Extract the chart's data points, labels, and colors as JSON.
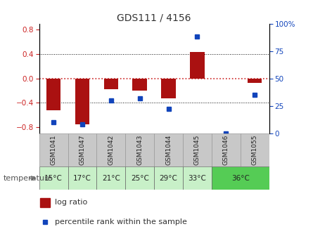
{
  "title": "GDS111 / 4156",
  "samples": [
    "GSM1041",
    "GSM1047",
    "GSM1042",
    "GSM1043",
    "GSM1044",
    "GSM1045",
    "GSM1046",
    "GSM1055"
  ],
  "log_ratios": [
    -0.52,
    -0.75,
    -0.18,
    -0.2,
    -0.33,
    0.43,
    0.0,
    -0.07
  ],
  "percentile_ranks": [
    10,
    8,
    30,
    32,
    22,
    88,
    0,
    35
  ],
  "temp_groups": [
    {
      "label": "15°C",
      "cols": [
        0
      ],
      "color": "#c8f0c8"
    },
    {
      "label": "17°C",
      "cols": [
        1
      ],
      "color": "#c8f0c8"
    },
    {
      "label": "21°C",
      "cols": [
        2
      ],
      "color": "#c8f0c8"
    },
    {
      "label": "25°C",
      "cols": [
        3
      ],
      "color": "#c8f0c8"
    },
    {
      "label": "29°C",
      "cols": [
        4
      ],
      "color": "#c8f0c8"
    },
    {
      "label": "33°C",
      "cols": [
        5
      ],
      "color": "#c8f0c8"
    },
    {
      "label": "36°C",
      "cols": [
        6,
        7
      ],
      "color": "#55cc55"
    }
  ],
  "ylim": [
    -0.9,
    0.9
  ],
  "yticks_left": [
    -0.8,
    -0.4,
    0.0,
    0.4,
    0.8
  ],
  "yticks_right": [
    0,
    25,
    50,
    75,
    100
  ],
  "bar_color": "#aa1111",
  "dot_color": "#1144bb",
  "zero_line_color": "#cc2222",
  "grid_color": "#111111",
  "sample_bg": "#c8c8c8",
  "legend_log_ratio": "log ratio",
  "legend_percentile": "percentile rank within the sample",
  "temp_label": "temperature"
}
